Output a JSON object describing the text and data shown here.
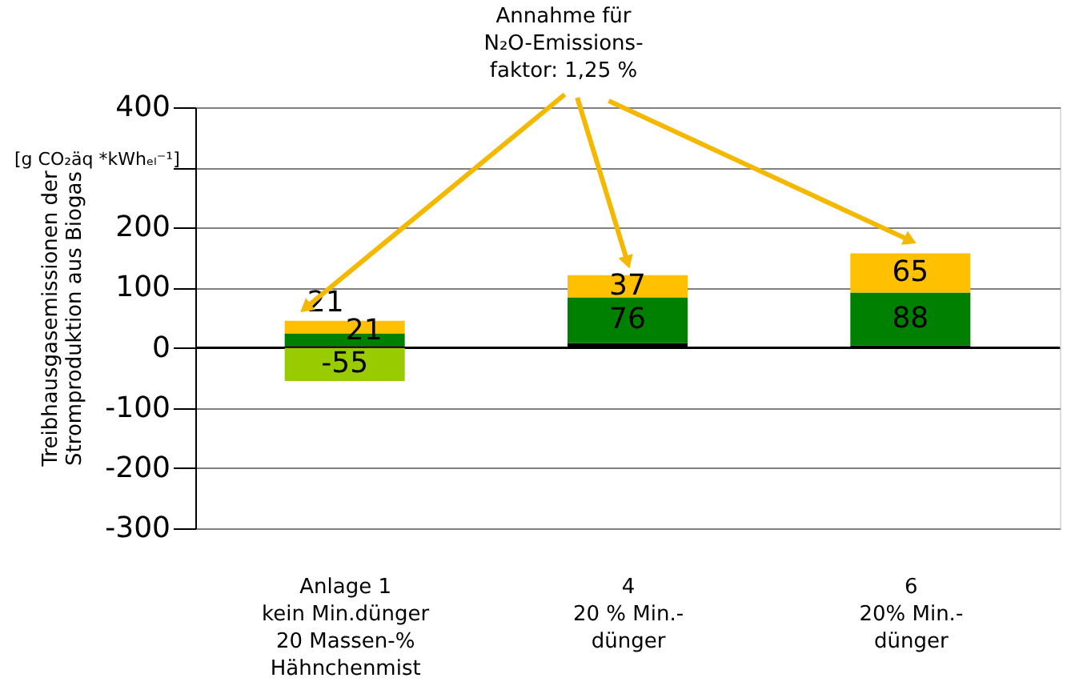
{
  "chart_data": {
    "type": "bar",
    "stacked": true,
    "ylabel": "Treibhausgasemissionen der\nStromproduktion aus Biogas",
    "annotations": [
      "[g CO₂äq *kWhₑₗ⁻¹]",
      "Annahme für\nN₂O-Emissions-\nfaktor: 1,25 %"
    ],
    "categories": [
      "Anlage 1\nkein Min.dünger\n20 Massen-%\nHähnchenmist",
      "4\n20 % Min.-\ndünger",
      "6\n20% Min.-\ndünger"
    ],
    "series": [
      {
        "color": "#99cc00",
        "values": [
          -55,
          null,
          null
        ],
        "value_labels": [
          "-55",
          null,
          null
        ]
      },
      {
        "color": "#000000",
        "values": [
          3,
          8,
          4
        ],
        "value_labels": [
          null,
          null,
          null
        ]
      },
      {
        "color": "#008000",
        "values": [
          21,
          76,
          88
        ],
        "value_labels": [
          "21",
          "76",
          "88"
        ]
      },
      {
        "color": "#ffc000",
        "values": [
          21,
          37,
          65
        ],
        "value_labels": [
          "21",
          "37",
          "65"
        ]
      }
    ],
    "ylim": [
      -300,
      400
    ],
    "yticks": [
      -300,
      -200,
      -100,
      0,
      100,
      200,
      {
        "value": 300,
        "label": null
      },
      400
    ],
    "grid": "y"
  }
}
